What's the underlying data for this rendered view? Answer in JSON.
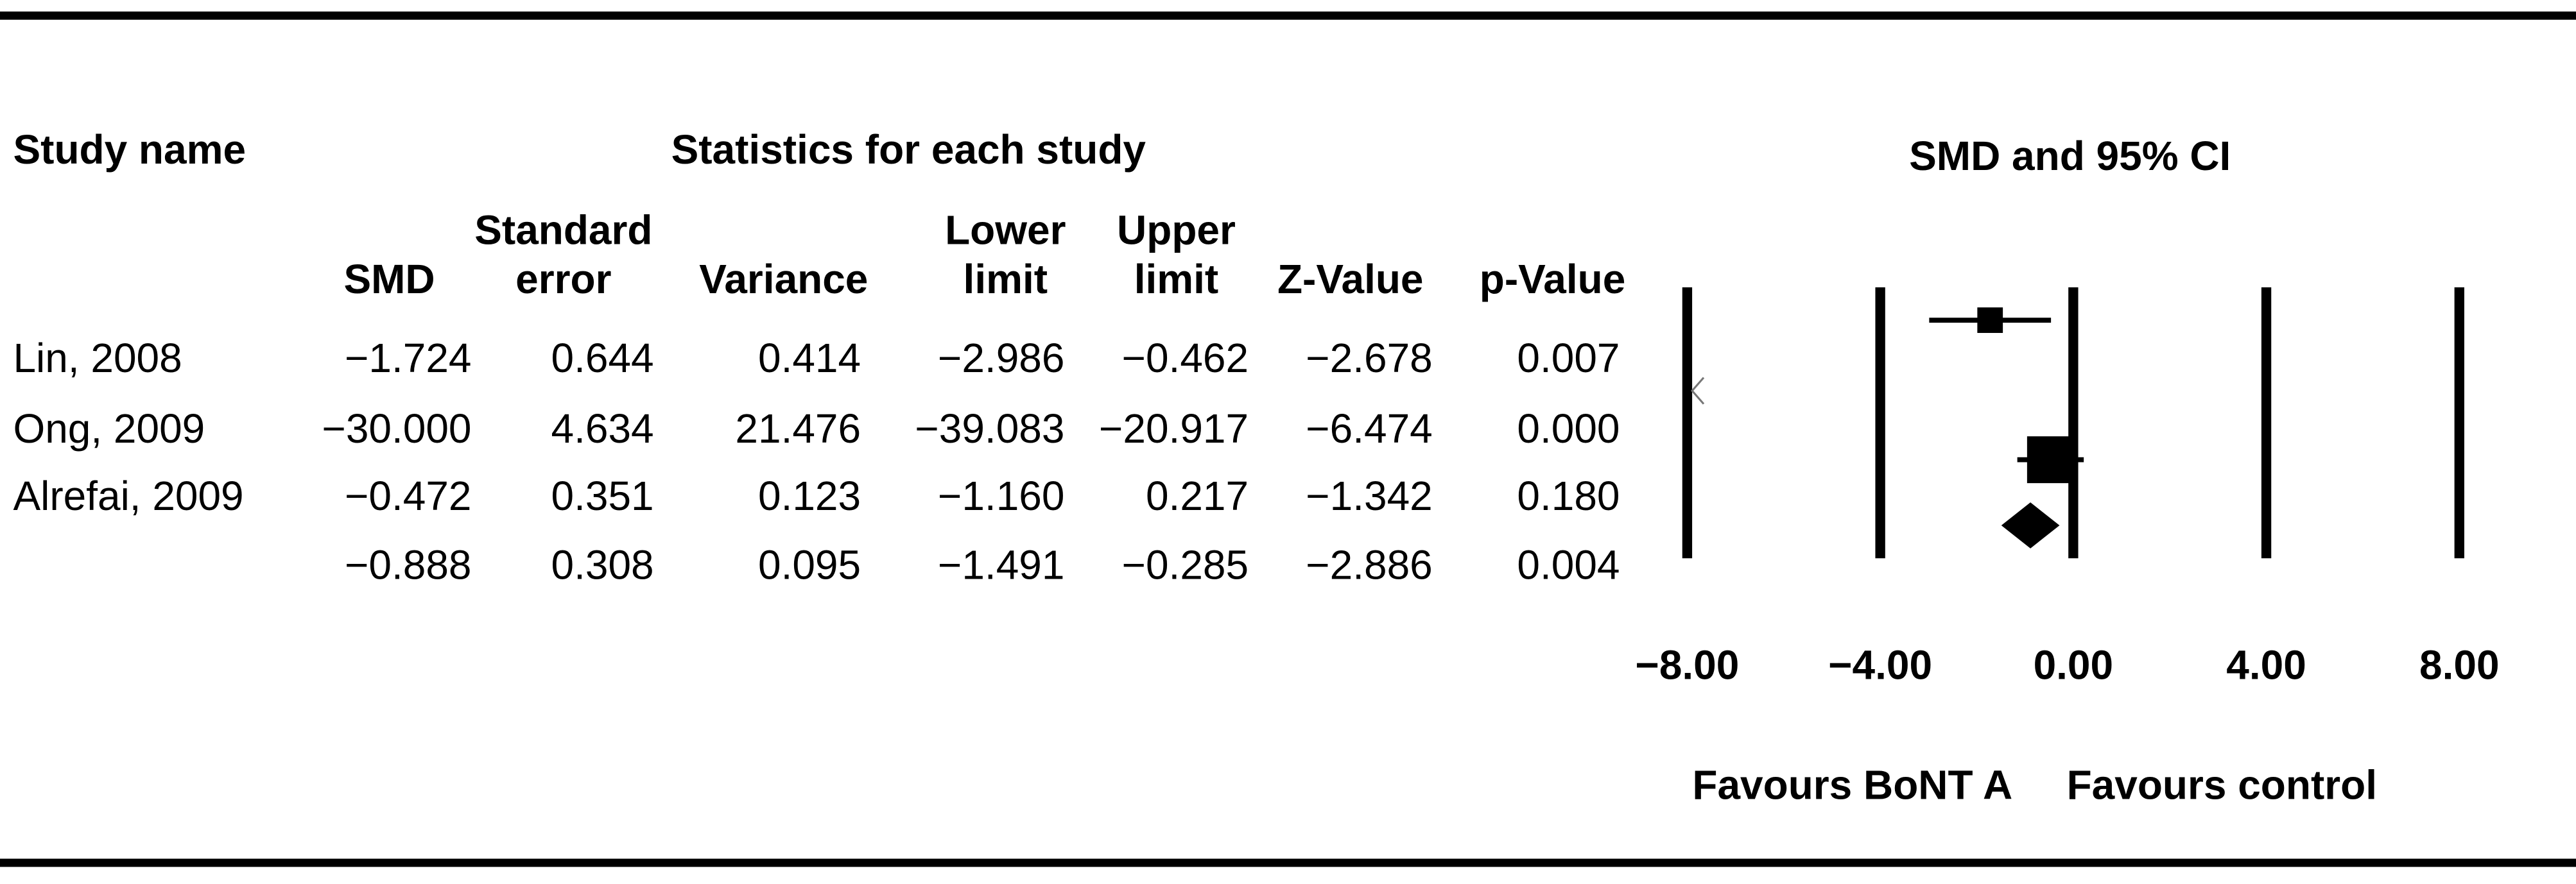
{
  "chart_data": {
    "type": "forest",
    "title": "SMD and 95% CI",
    "study_column_title": "Study name",
    "statistics_title": "Statistics for each study",
    "studies": [
      "Lin, 2008",
      "Ong, 2009",
      "Alrefai, 2009",
      null
    ],
    "columns": [
      {
        "header": [
          "SMD"
        ],
        "values": [
          -1.724,
          -30,
          -0.472,
          -0.888
        ],
        "value_labels": [
          "−1.724",
          "−30.000",
          "−0.472",
          "−0.888"
        ]
      },
      {
        "header": [
          "Standard",
          "error"
        ],
        "values": [
          0.644,
          4.634,
          0.351,
          0.308
        ]
      },
      {
        "header": [
          "Variance"
        ],
        "values": [
          0.414,
          21.476,
          0.123,
          0.095
        ]
      },
      {
        "header": [
          "Lower",
          "limit"
        ],
        "values": [
          -2.986,
          -39.083,
          -1.16,
          -1.491
        ],
        "value_labels": [
          "−2.986",
          "−39.083",
          "−1.160",
          "−1.491"
        ]
      },
      {
        "header": [
          "Upper",
          "limit"
        ],
        "values": [
          -0.462,
          -20.917,
          0.217,
          -0.285
        ],
        "value_labels": [
          "−0.462",
          "−20.917",
          "0.217",
          "−0.285"
        ]
      },
      {
        "header": [
          "Z-Value"
        ],
        "values": [
          -2.678,
          -6.474,
          -1.342,
          -2.886
        ],
        "value_labels": [
          "−2.678",
          "−6.474",
          "−1.342",
          "−2.886"
        ]
      },
      {
        "header": [
          "p-Value"
        ],
        "values": [
          0.007,
          0,
          0.18,
          0.004
        ],
        "value_labels": [
          "0.007",
          "0.000",
          "0.180",
          "0.004"
        ]
      }
    ],
    "xlim": [
      -8,
      8
    ],
    "xticks": [
      {
        "value": -8,
        "label": "−8.00"
      },
      {
        "value": -4,
        "label": "−4.00"
      },
      {
        "value": 0,
        "label": "0.00"
      },
      {
        "value": 4,
        "label": "4.00"
      },
      {
        "value": 8,
        "label": "8.00"
      }
    ],
    "x_axis_labels": [
      "Favours BoNT A",
      "Favours control"
    ]
  }
}
